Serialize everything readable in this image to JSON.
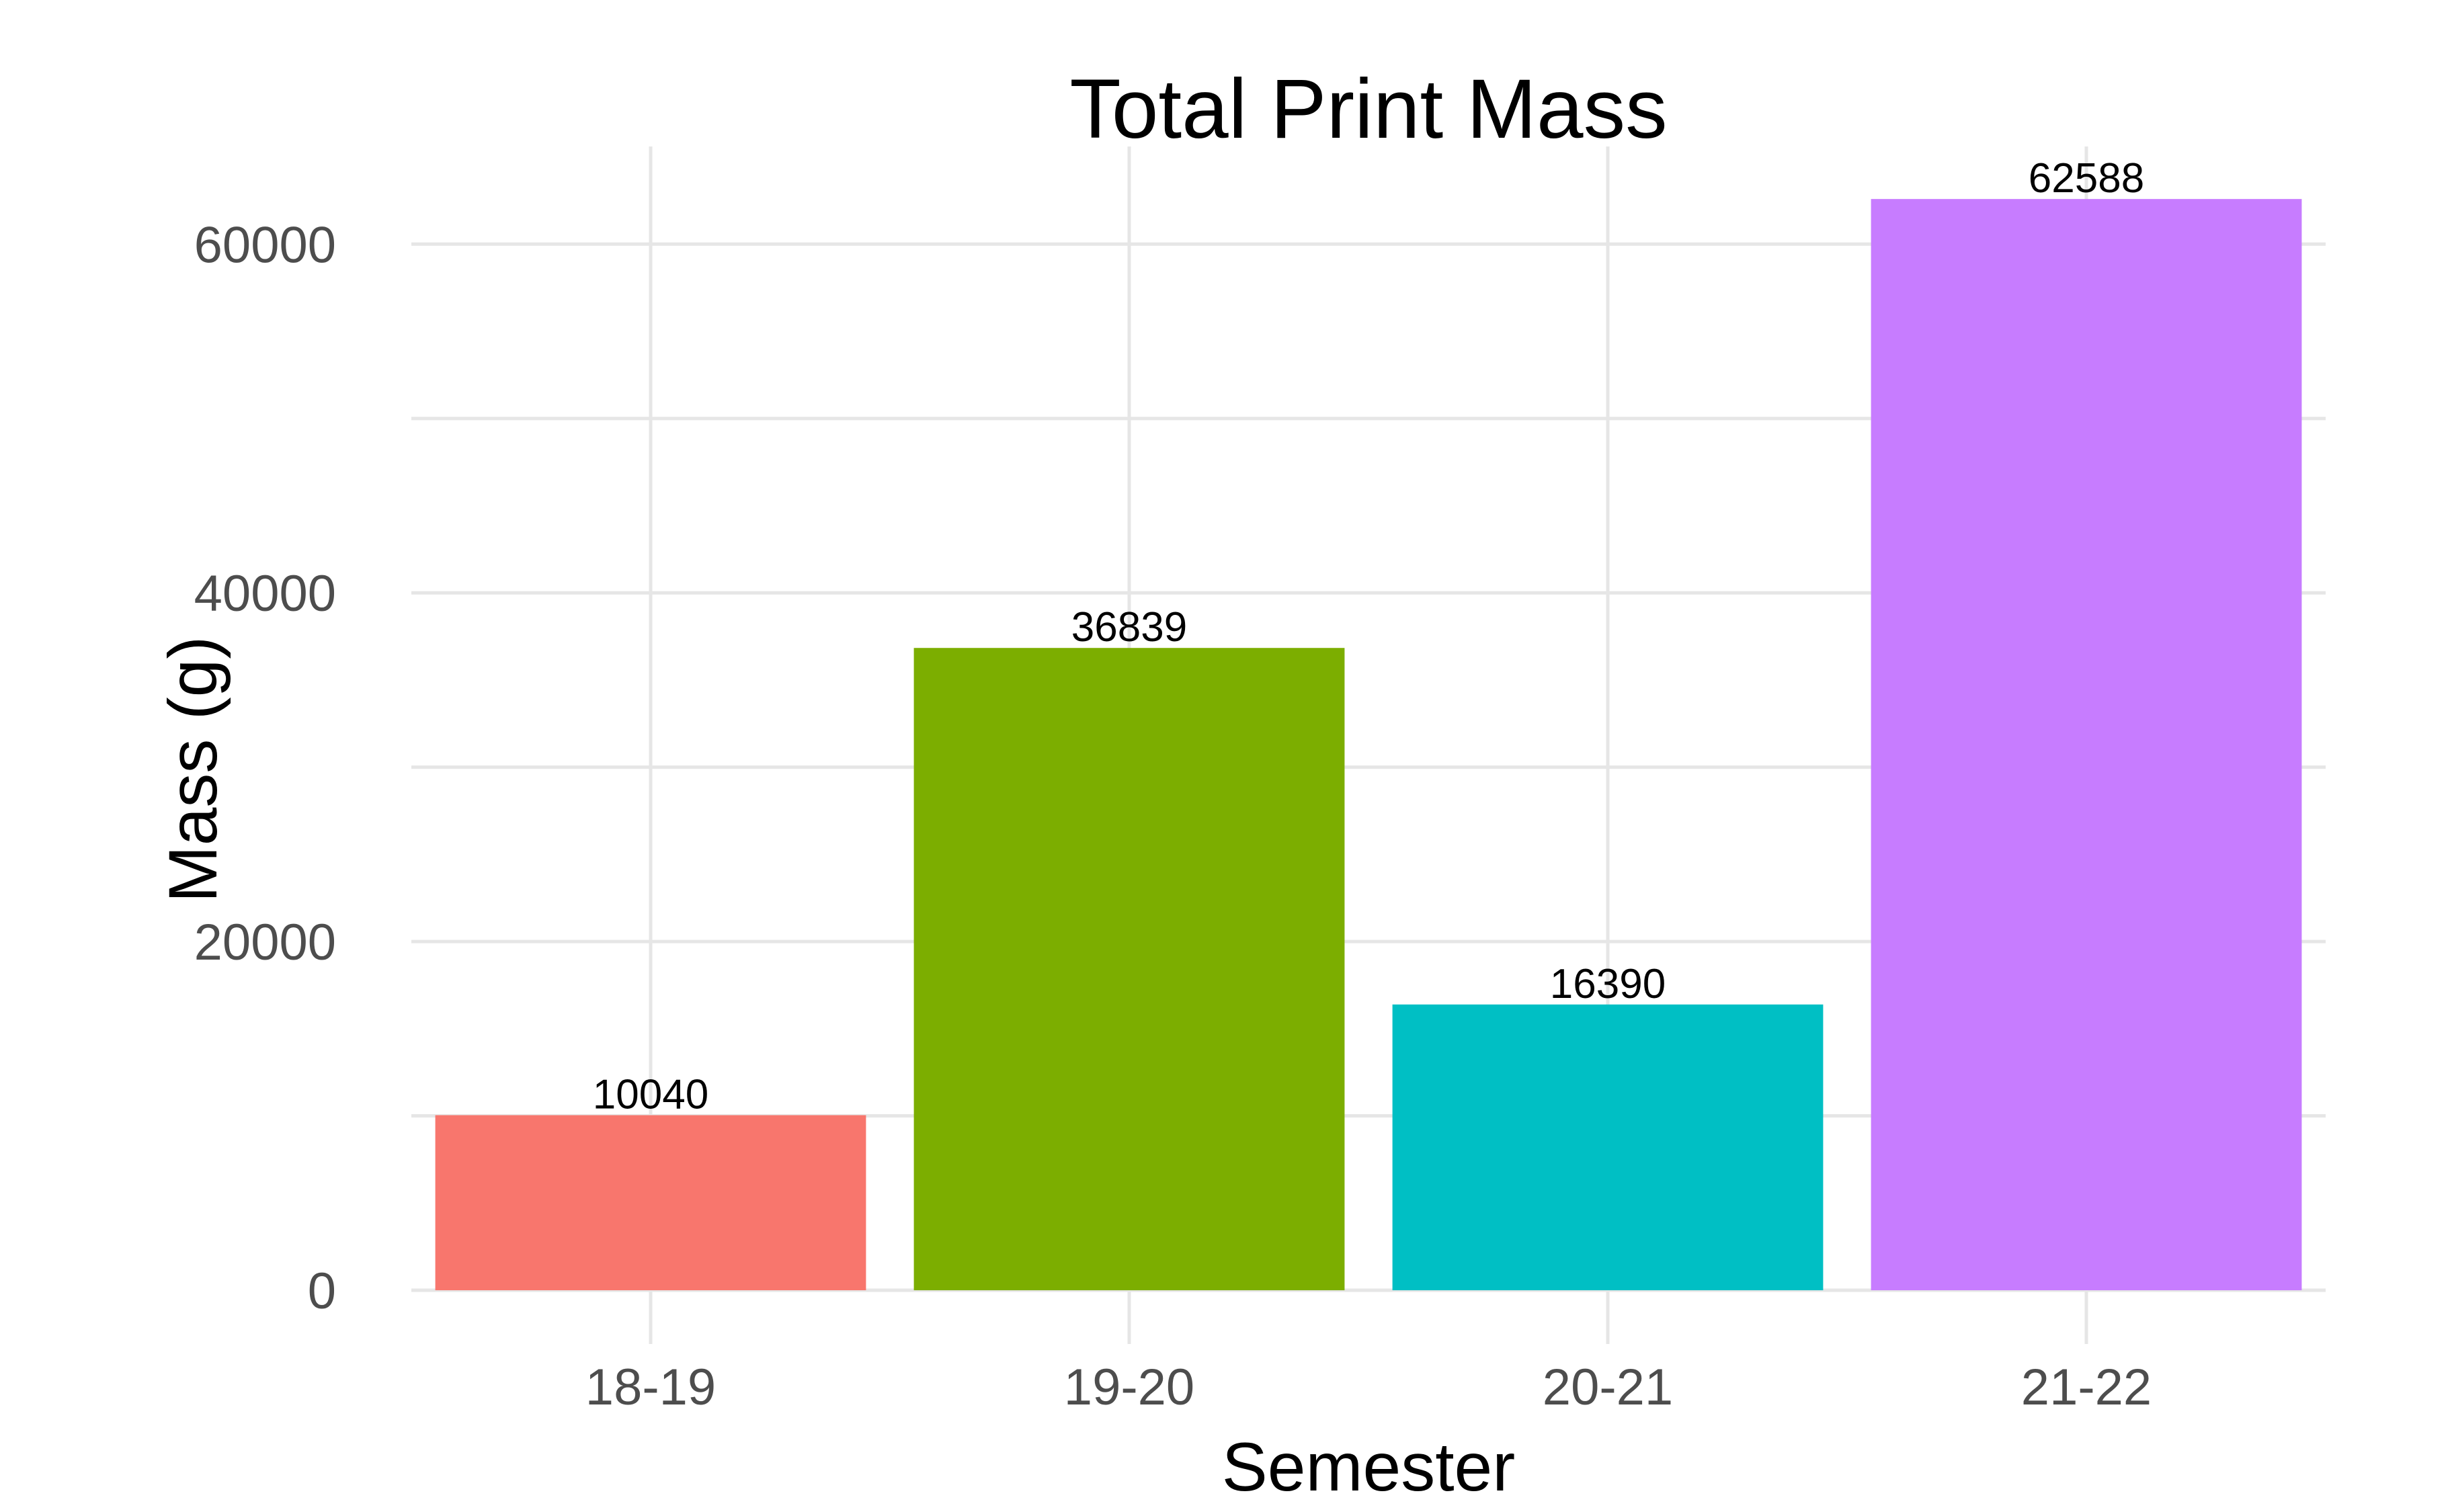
{
  "chart_data": {
    "type": "bar",
    "title": "Total Print Mass",
    "xlabel": "Semester",
    "ylabel": "Mass (g)",
    "categories": [
      "18-19",
      "19-20",
      "20-21",
      "21-22"
    ],
    "values": [
      10040,
      36839,
      16390,
      62588
    ],
    "data_labels": [
      "10040",
      "36839",
      "16390",
      "62588"
    ],
    "colors": [
      "#F8766D",
      "#7CAE00",
      "#00BFC4",
      "#C77CFF"
    ],
    "ylim": [
      0,
      65600
    ],
    "y_ticks": [
      0,
      20000,
      40000,
      60000
    ],
    "y_tick_labels": [
      "0",
      "20000",
      "40000",
      "60000"
    ],
    "y_minor_ticks": [
      10000,
      30000,
      50000
    ],
    "grid": true,
    "legend": "none"
  }
}
